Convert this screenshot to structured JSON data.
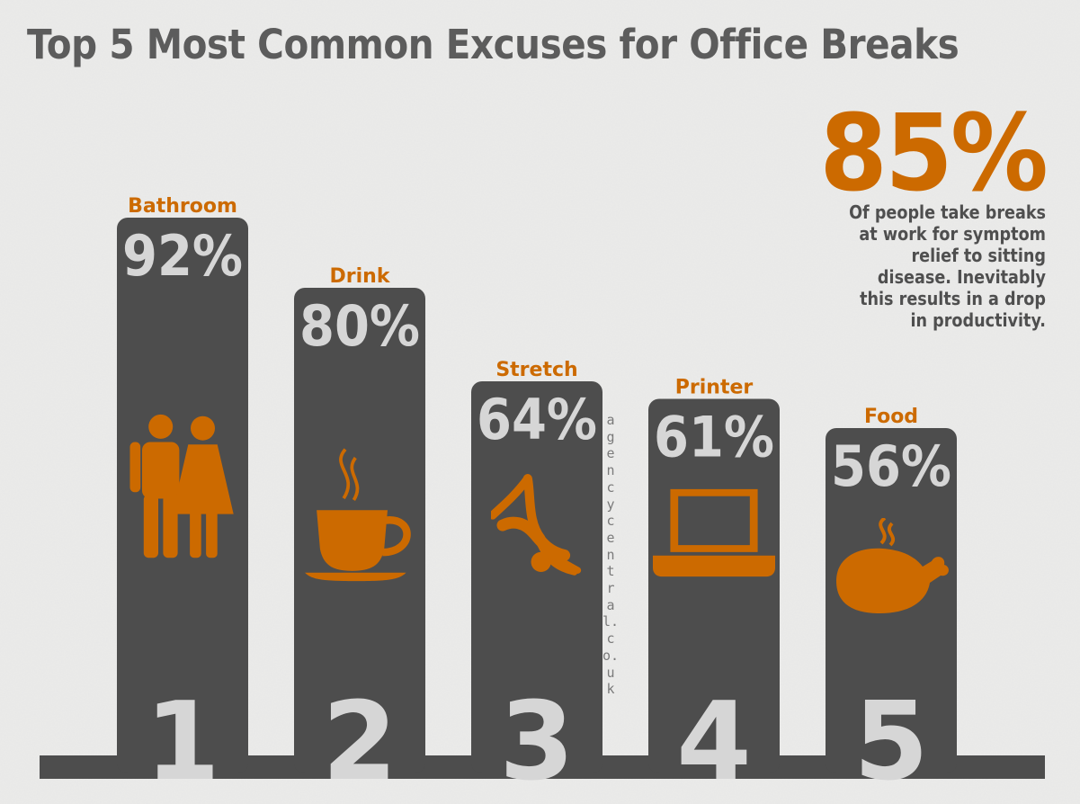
{
  "chart_data": {
    "type": "bar",
    "title": "Top 5 Most Common Excuses for Office Breaks",
    "categories": [
      "Bathroom",
      "Drink",
      "Stretch",
      "Printer",
      "Food"
    ],
    "values": [
      92,
      80,
      64,
      61,
      56
    ],
    "value_labels": [
      "92%",
      "80%",
      "64%",
      "61%",
      "56%"
    ],
    "ranks": [
      "1",
      "2",
      "3",
      "4",
      "5"
    ],
    "icons": [
      "restroom-icon",
      "coffee-cup-icon",
      "gymnast-stretch-icon",
      "laptop-icon",
      "roast-chicken-icon"
    ],
    "ylim": [
      0,
      100
    ],
    "grid": false,
    "colors": {
      "bar": "#4d4d4d",
      "accent": "#cc6a00",
      "value_text": "#d6d6d6",
      "title": "#5c5c5c"
    }
  },
  "stat": {
    "value": "85%",
    "lines": [
      "Of people take breaks",
      "at work for symptom",
      "relief to sitting",
      "disease. Inevitably",
      "this results in a drop",
      "in productivity."
    ]
  },
  "watermark": "agencycentral.co.uk"
}
